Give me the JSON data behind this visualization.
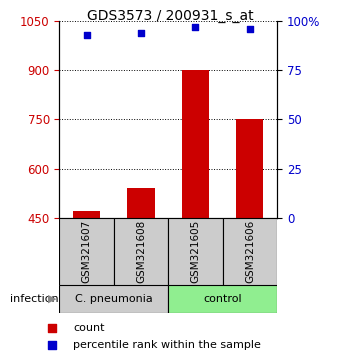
{
  "title": "GDS3573 / 200931_s_at",
  "samples": [
    "GSM321607",
    "GSM321608",
    "GSM321605",
    "GSM321606"
  ],
  "bar_values": [
    470,
    540,
    900,
    750
  ],
  "percentile_values": [
    93,
    94,
    97,
    96
  ],
  "ylim_left": [
    450,
    1050
  ],
  "ylim_right": [
    0,
    100
  ],
  "yticks_left": [
    450,
    600,
    750,
    900,
    1050
  ],
  "yticks_right": [
    0,
    25,
    50,
    75,
    100
  ],
  "ytick_labels_right": [
    "0",
    "25",
    "50",
    "75",
    "100%"
  ],
  "bar_color": "#cc0000",
  "dot_color": "#0000cc",
  "groups": [
    {
      "label": "C. pneumonia",
      "color": "#cccccc",
      "samples": [
        0,
        1
      ]
    },
    {
      "label": "control",
      "color": "#90ee90",
      "samples": [
        2,
        3
      ]
    }
  ],
  "group_label": "infection",
  "legend_count_label": "count",
  "legend_pct_label": "percentile rank within the sample",
  "title_fontsize": 10,
  "tick_fontsize": 8.5,
  "bar_width": 0.5
}
